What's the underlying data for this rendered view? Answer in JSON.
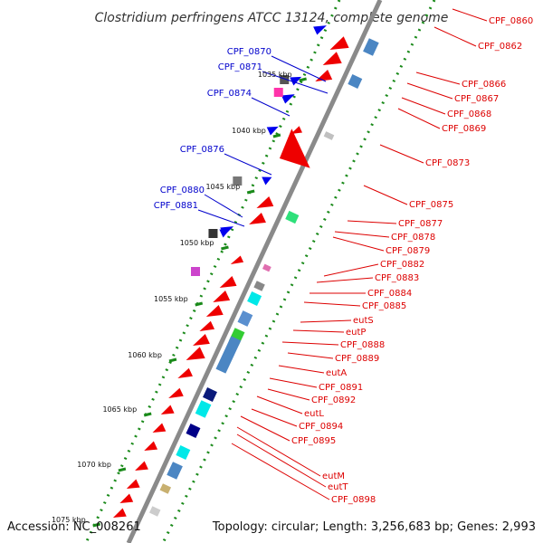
{
  "title": "Clostridium perfringens ATCC 13124, complete genome",
  "footer": {
    "accession": "Accession: NC_008261",
    "topology": "Topology: circular; Length: 3,256,683 bp; Genes: 2,993"
  },
  "colors": {
    "forward_label": "#0000cc",
    "reverse_label": "#dd0000",
    "forward_gene": "#0000ee",
    "reverse_gene": "#ee0000",
    "backbone": "#888888",
    "gc_dots": "#1a8a1a",
    "tick": "#1a8a1a"
  },
  "ticks": [
    {
      "label": "1035 kbp"
    },
    {
      "label": "1040 kbp"
    },
    {
      "label": "1045 kbp"
    },
    {
      "label": "1050 kbp"
    },
    {
      "label": "1055 kbp"
    },
    {
      "label": "1060 kbp"
    },
    {
      "label": "1065 kbp"
    },
    {
      "label": "1070 kbp"
    },
    {
      "label": "1075 kbp"
    }
  ],
  "forward_labels": [
    "CPF_0870",
    "CPF_0871",
    "CPF_0874",
    "CPF_0876",
    "CPF_0880",
    "CPF_0881"
  ],
  "reverse_labels": [
    "CPF_0860",
    "CPF_0862",
    "CPF_0866",
    "CPF_0867",
    "CPF_0868",
    "CPF_0869",
    "CPF_0873",
    "CPF_0875",
    "CPF_0877",
    "CPF_0878",
    "CPF_0879",
    "CPF_0882",
    "CPF_0883",
    "CPF_0884",
    "CPF_0885",
    "eutS",
    "eutP",
    "CPF_0888",
    "CPF_0889",
    "eutA",
    "CPF_0891",
    "CPF_0892",
    "eutL",
    "CPF_0894",
    "CPF_0895",
    "eutM",
    "eutT",
    "CPF_0898"
  ]
}
